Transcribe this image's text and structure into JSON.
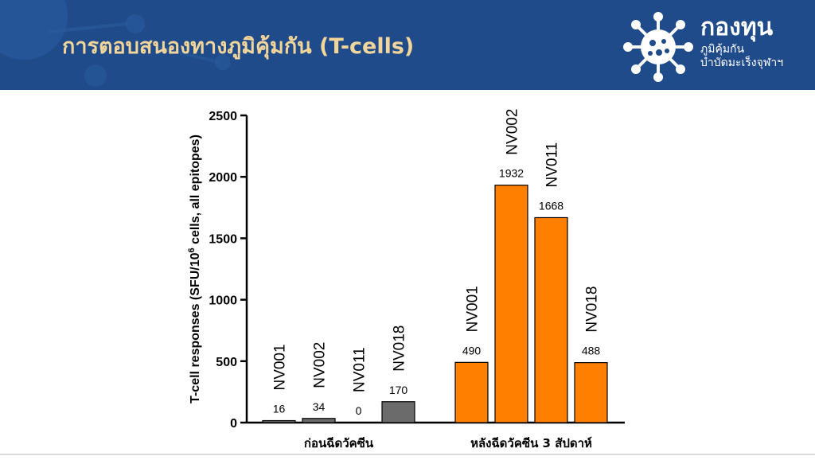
{
  "header": {
    "title": "การตอบสนองทางภูมิคุ้มกัน (T-cells)",
    "logo_word": "กองทุน",
    "logo_line1": "ภูมิคุ้มกัน",
    "logo_line2": "บำบัดมะเร็งจุฬาฯ"
  },
  "colors": {
    "header_bg": "#1f4b8a",
    "title": "#f2d59a",
    "before_bar": "#6b6b6b",
    "after_bar": "#ff8000"
  },
  "chart_data": {
    "type": "bar",
    "ylabel": "T-cell responses (SFU/10^6 cells, all epitopes)",
    "ylabel_main": "T-cell responses (SFU/10",
    "ylabel_sup": "6",
    "ylabel_tail": " cells, all epitopes)",
    "ylim": [
      0,
      2500
    ],
    "yticks": [
      "0",
      "500",
      "1000",
      "1500",
      "2000",
      "2500"
    ],
    "grid": false,
    "groups": [
      {
        "label": "ก่อนฉีดวัคซีน",
        "color": "#6b6b6b",
        "bars": [
          {
            "name": "NV001",
            "value": 16,
            "value_label": "16"
          },
          {
            "name": "NV002",
            "value": 34,
            "value_label": "34"
          },
          {
            "name": "NV011",
            "value": 0,
            "value_label": "0"
          },
          {
            "name": "NV018",
            "value": 170,
            "value_label": "170"
          }
        ]
      },
      {
        "label": "หลังฉีดวัคซีน 3 สัปดาห์",
        "color": "#ff8000",
        "bars": [
          {
            "name": "NV001",
            "value": 490,
            "value_label": "490"
          },
          {
            "name": "NV002",
            "value": 1932,
            "value_label": "1932"
          },
          {
            "name": "NV011",
            "value": 1668,
            "value_label": "1668"
          },
          {
            "name": "NV018",
            "value": 488,
            "value_label": "488"
          }
        ]
      }
    ]
  }
}
